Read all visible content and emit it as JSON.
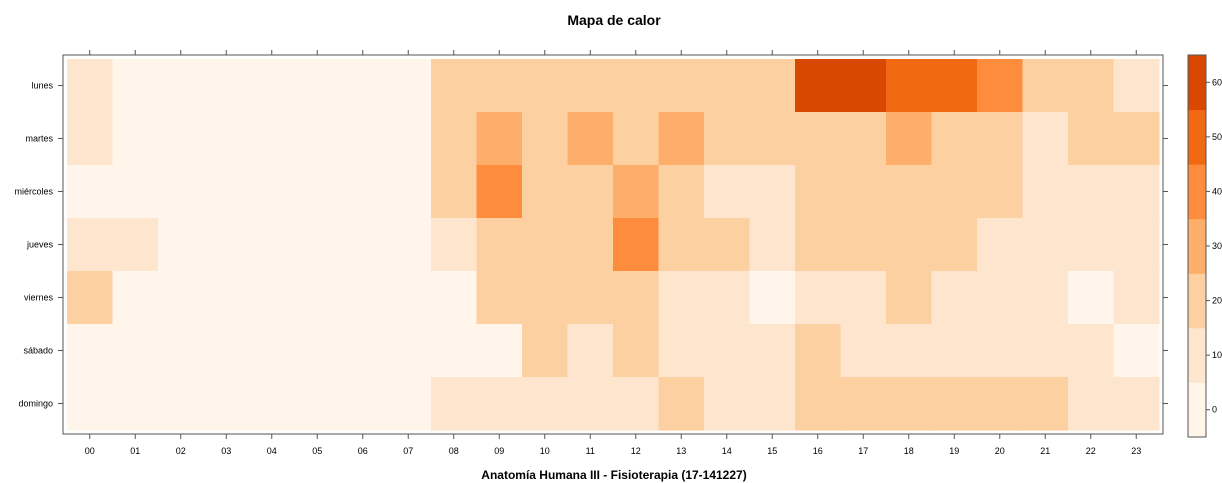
{
  "chart_data": {
    "type": "heatmap",
    "title": "Mapa de calor",
    "xlabel": "Anatomía Humana III - Fisioterapia (17-141227)",
    "ylabel": "",
    "x_categories": [
      "00",
      "01",
      "02",
      "03",
      "04",
      "05",
      "06",
      "07",
      "08",
      "09",
      "10",
      "11",
      "12",
      "13",
      "14",
      "15",
      "16",
      "17",
      "18",
      "19",
      "20",
      "21",
      "22",
      "23"
    ],
    "y_categories": [
      "lunes",
      "martes",
      "miércoles",
      "jueves",
      "viernes",
      "sábado",
      "domingo"
    ],
    "values": [
      [
        8,
        2,
        2,
        2,
        2,
        2,
        2,
        2,
        18,
        22,
        22,
        15,
        22,
        15,
        15,
        15,
        63,
        57,
        52,
        52,
        43,
        15,
        15,
        8
      ],
      [
        8,
        2,
        2,
        2,
        2,
        2,
        2,
        2,
        22,
        33,
        22,
        33,
        22,
        33,
        22,
        22,
        22,
        22,
        33,
        22,
        15,
        8,
        15,
        15
      ],
      [
        2,
        2,
        2,
        2,
        2,
        2,
        2,
        2,
        22,
        42,
        22,
        15,
        33,
        15,
        8,
        8,
        15,
        22,
        22,
        22,
        22,
        8,
        8,
        8
      ],
      [
        8,
        8,
        2,
        2,
        2,
        2,
        2,
        2,
        8,
        22,
        22,
        22,
        35,
        22,
        15,
        8,
        15,
        15,
        15,
        22,
        8,
        8,
        8,
        8
      ],
      [
        15,
        2,
        2,
        2,
        2,
        2,
        2,
        2,
        2,
        15,
        22,
        15,
        15,
        8,
        8,
        2,
        8,
        8,
        15,
        8,
        8,
        8,
        2,
        8
      ],
      [
        2,
        2,
        2,
        2,
        2,
        2,
        2,
        2,
        2,
        2,
        15,
        8,
        15,
        8,
        8,
        8,
        15,
        8,
        8,
        8,
        8,
        8,
        8,
        2
      ],
      [
        2,
        2,
        2,
        2,
        2,
        2,
        2,
        2,
        8,
        8,
        8,
        8,
        8,
        15,
        8,
        8,
        15,
        15,
        15,
        15,
        15,
        15,
        8,
        8
      ]
    ],
    "colorbar": {
      "ticks": [
        "0",
        "10",
        "20",
        "30",
        "40",
        "50",
        "60"
      ],
      "breaks": [
        -5,
        5,
        15,
        25,
        35,
        45,
        55,
        65
      ],
      "colors": [
        "#fff5eb",
        "#fee6ce",
        "#fdd0a2",
        "#fdae6b",
        "#fd8d3c",
        "#f16913",
        "#d94801",
        "#a63603",
        "#7f2704"
      ]
    },
    "grid": false
  }
}
